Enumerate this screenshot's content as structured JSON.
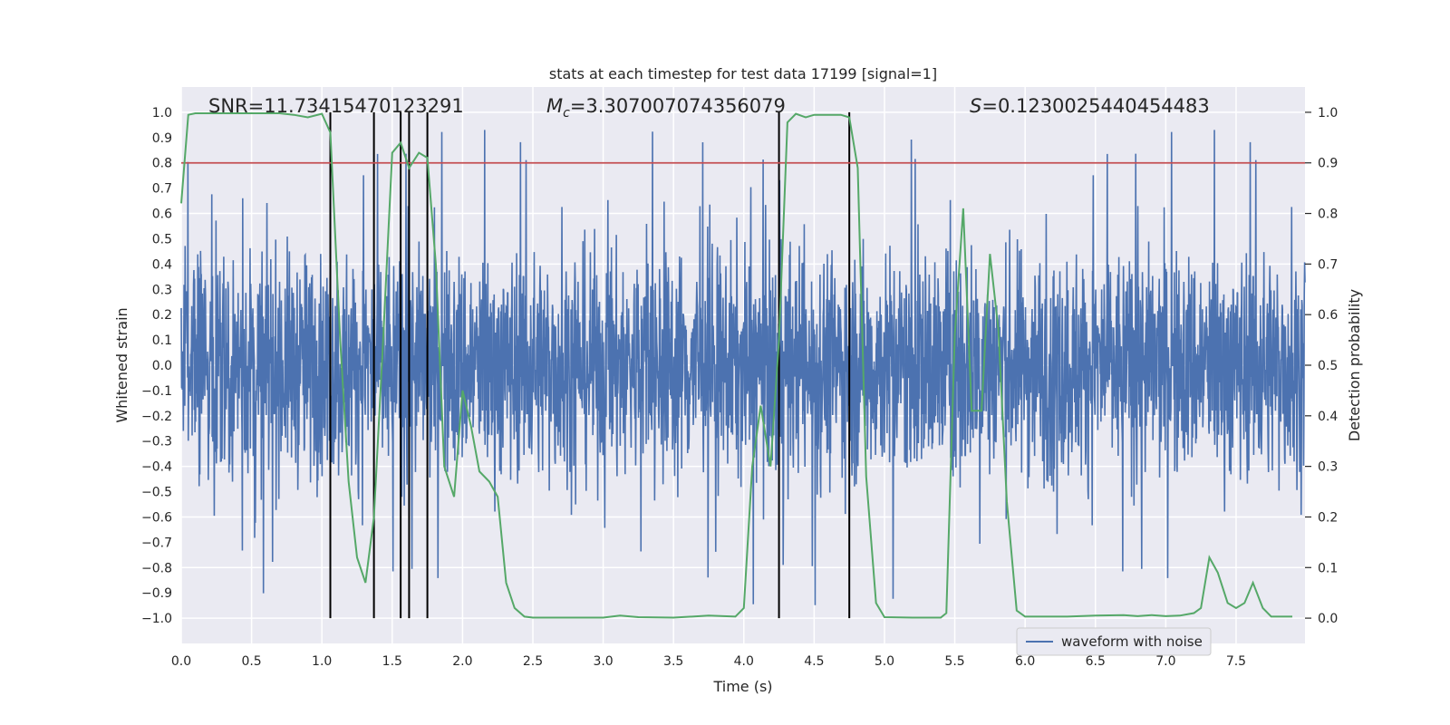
{
  "chart_data": {
    "type": "line",
    "title": "stats at each timestep for test data 17199 [signal=1]",
    "xlabel": "Time (s)",
    "ylabel_left": "Whitened strain",
    "ylabel_right": "Detection probability",
    "xlim": [
      0.0,
      7.99
    ],
    "ylim_left": [
      -1.1,
      1.1
    ],
    "ylim_right": [
      -0.05,
      1.05
    ],
    "x_ticks": [
      "0.0",
      "0.5",
      "1.0",
      "1.5",
      "2.0",
      "2.5",
      "3.0",
      "3.5",
      "4.0",
      "4.5",
      "5.0",
      "5.5",
      "6.0",
      "6.5",
      "7.0",
      "7.5"
    ],
    "x_tick_values": [
      0.0,
      0.5,
      1.0,
      1.5,
      2.0,
      2.5,
      3.0,
      3.5,
      4.0,
      4.5,
      5.0,
      5.5,
      6.0,
      6.5,
      7.0,
      7.5
    ],
    "y_ticks_left": [
      "1.0",
      "0.9",
      "0.8",
      "0.7",
      "0.6",
      "0.5",
      "0.4",
      "0.3",
      "0.2",
      "0.1",
      "0.0",
      "−0.1",
      "−0.2",
      "−0.3",
      "−0.4",
      "−0.5",
      "−0.6",
      "−0.7",
      "−0.8",
      "−0.9",
      "−1.0"
    ],
    "y_tick_values_left": [
      1.0,
      0.9,
      0.8,
      0.7,
      0.6,
      0.5,
      0.4,
      0.3,
      0.2,
      0.1,
      0.0,
      -0.1,
      -0.2,
      -0.3,
      -0.4,
      -0.5,
      -0.6,
      -0.7,
      -0.8,
      -0.9,
      -1.0
    ],
    "y_ticks_right": [
      "1.0",
      "0.9",
      "0.8",
      "0.7",
      "0.6",
      "0.5",
      "0.4",
      "0.3",
      "0.2",
      "0.1",
      "0.0"
    ],
    "y_tick_values_right": [
      1.0,
      0.9,
      0.8,
      0.7,
      0.6,
      0.5,
      0.4,
      0.3,
      0.2,
      0.1,
      0.0
    ],
    "annotations": {
      "snr": "SNR=11.73415470123291",
      "mc_symbol": "M",
      "mc_sub": "c",
      "mc_value": "=3.307007074356079",
      "s_symbol": "S",
      "s_value": "=0.1230025440454483"
    },
    "threshold": 0.9,
    "event_markers": [
      1.06,
      1.37,
      1.56,
      1.62,
      1.75,
      4.25,
      4.75
    ],
    "waveform": {
      "name": "waveform with noise",
      "typical_amplitude": 0.4,
      "peak_amplitude": 0.95
    },
    "detection_probability": {
      "x": [
        0.0,
        0.05,
        0.1,
        0.2,
        0.3,
        0.4,
        0.5,
        0.6,
        0.7,
        0.8,
        0.9,
        1.0,
        1.06,
        1.13,
        1.19,
        1.25,
        1.31,
        1.37,
        1.43,
        1.5,
        1.56,
        1.62,
        1.69,
        1.75,
        1.81,
        1.87,
        1.94,
        2.0,
        2.06,
        2.12,
        2.19,
        2.25,
        2.31,
        2.37,
        2.44,
        2.5,
        2.6,
        2.8,
        3.0,
        3.12,
        3.25,
        3.5,
        3.75,
        3.94,
        4.0,
        4.06,
        4.12,
        4.19,
        4.25,
        4.31,
        4.37,
        4.44,
        4.5,
        4.56,
        4.62,
        4.69,
        4.75,
        4.81,
        4.87,
        4.94,
        5.0,
        5.2,
        5.4,
        5.44,
        5.5,
        5.56,
        5.62,
        5.69,
        5.75,
        5.81,
        5.87,
        5.94,
        6.0,
        6.2,
        6.3,
        6.5,
        6.7,
        6.8,
        6.9,
        7.0,
        7.1,
        7.2,
        7.25,
        7.31,
        7.37,
        7.44,
        7.5,
        7.56,
        7.62,
        7.69,
        7.75,
        7.9
      ],
      "y": [
        0.82,
        0.995,
        0.998,
        0.998,
        0.998,
        0.998,
        0.998,
        0.998,
        0.998,
        0.995,
        0.99,
        0.997,
        0.96,
        0.55,
        0.27,
        0.12,
        0.07,
        0.2,
        0.52,
        0.92,
        0.94,
        0.89,
        0.92,
        0.91,
        0.7,
        0.3,
        0.24,
        0.45,
        0.38,
        0.29,
        0.27,
        0.24,
        0.07,
        0.02,
        0.003,
        0.001,
        0.001,
        0.001,
        0.001,
        0.005,
        0.002,
        0.001,
        0.005,
        0.003,
        0.02,
        0.3,
        0.42,
        0.3,
        0.55,
        0.98,
        0.997,
        0.99,
        0.995,
        0.995,
        0.995,
        0.995,
        0.99,
        0.89,
        0.28,
        0.03,
        0.002,
        0.001,
        0.001,
        0.01,
        0.56,
        0.81,
        0.41,
        0.41,
        0.72,
        0.57,
        0.23,
        0.015,
        0.003,
        0.003,
        0.003,
        0.005,
        0.006,
        0.004,
        0.006,
        0.004,
        0.005,
        0.01,
        0.02,
        0.12,
        0.09,
        0.03,
        0.02,
        0.03,
        0.07,
        0.02,
        0.003,
        0.003
      ]
    },
    "legend": {
      "position": "lower-right",
      "entries": [
        "waveform with noise"
      ]
    },
    "colors": {
      "plot_bg": "#EAEAF2",
      "grid": "#FFFFFF",
      "waveform": "#4C72B0",
      "probability": "#55A868",
      "threshold": "#C44E52",
      "event_marker": "#000000"
    }
  }
}
